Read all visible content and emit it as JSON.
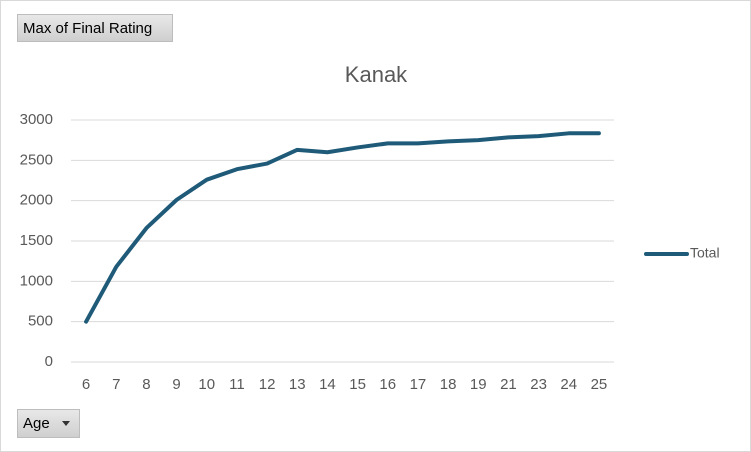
{
  "field_buttons": {
    "value": "Max of Final Rating",
    "axis": "Age"
  },
  "chart_data": {
    "type": "line",
    "title": "Kanak",
    "categories": [
      "6",
      "7",
      "8",
      "9",
      "10",
      "11",
      "12",
      "13",
      "14",
      "15",
      "16",
      "17",
      "18",
      "19",
      "21",
      "23",
      "24",
      "25"
    ],
    "series": [
      {
        "name": "Total",
        "color": "#1f5b79",
        "values": [
          500,
          1180,
          1660,
          2010,
          2260,
          2390,
          2460,
          2630,
          2600,
          2660,
          2710,
          2710,
          2735,
          2750,
          2785,
          2800,
          2835,
          2835
        ]
      }
    ],
    "ylim": [
      0,
      3000
    ],
    "yticks": [
      0,
      500,
      1000,
      1500,
      2000,
      2500,
      3000
    ],
    "grid": true,
    "legend": "right"
  }
}
